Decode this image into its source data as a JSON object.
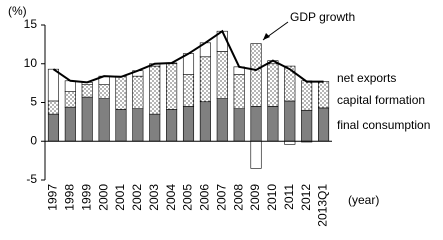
{
  "chart_data": {
    "type": "bar",
    "stacked": true,
    "y_unit_label": "(%)",
    "x_unit_label": "(year)",
    "annotation": "GDP growth",
    "categories": [
      "1997",
      "1998",
      "1999",
      "2000",
      "2001",
      "2002",
      "2003",
      "2004",
      "2005",
      "2006",
      "2007",
      "2008",
      "2009",
      "2010",
      "2011",
      "2012",
      "2013Q1"
    ],
    "series": [
      {
        "name": "final consumption",
        "color": "#808080",
        "values": [
          3.5,
          4.4,
          5.7,
          5.5,
          4.1,
          4.2,
          3.5,
          4.1,
          4.5,
          5.1,
          5.5,
          4.2,
          4.5,
          4.5,
          5.2,
          4.0,
          4.3
        ]
      },
      {
        "name": "capital formation",
        "color": "#ffffff",
        "pattern": "dots",
        "values": [
          1.7,
          2.0,
          1.6,
          1.8,
          4.3,
          4.2,
          6.2,
          5.9,
          4.1,
          5.8,
          6.1,
          4.4,
          8.1,
          5.5,
          4.5,
          3.8,
          3.4
        ]
      },
      {
        "name": "net exports",
        "color": "#ffffff",
        "values": [
          4.1,
          1.4,
          0.3,
          1.1,
          0.0,
          0.7,
          0.3,
          0.1,
          2.7,
          1.8,
          2.6,
          1.0,
          -3.5,
          0.4,
          -0.4,
          -0.1,
          0.0
        ]
      },
      {
        "name": "GDP growth",
        "type": "line",
        "color": "#000000",
        "values": [
          9.3,
          7.8,
          7.6,
          8.4,
          8.3,
          9.1,
          10.0,
          10.1,
          11.3,
          12.7,
          14.2,
          9.6,
          9.2,
          10.4,
          9.3,
          7.7,
          7.7
        ]
      }
    ],
    "ylim": [
      -5,
      15
    ],
    "yticks": [
      -5,
      0,
      5,
      10,
      15
    ],
    "grid": false
  }
}
